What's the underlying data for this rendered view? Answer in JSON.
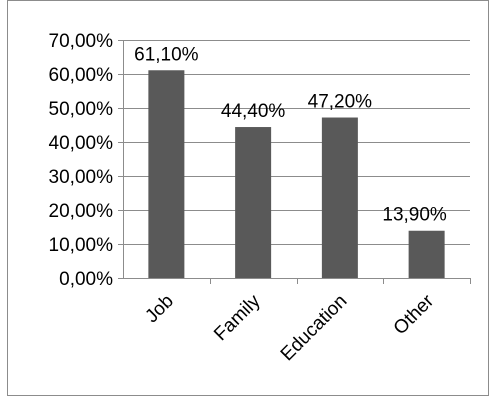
{
  "chart_data": {
    "type": "bar",
    "categories": [
      "Job",
      "Family",
      "Education",
      "Other"
    ],
    "values": [
      61.1,
      44.4,
      47.2,
      13.9
    ],
    "data_labels": [
      "61,10%",
      "44,40%",
      "47,20%",
      "13,90%"
    ],
    "ylim": [
      0,
      70
    ],
    "yticks": [
      0,
      10,
      20,
      30,
      40,
      50,
      60,
      70
    ],
    "ytick_labels": [
      "0,00%",
      "10,00%",
      "20,00%",
      "30,00%",
      "40,00%",
      "50,00%",
      "60,00%",
      "70,00%"
    ],
    "grid": true,
    "legend": "none",
    "bar_color": "#595959",
    "grid_color": "#8c8c8c",
    "axis_color": "#8c8c8c"
  }
}
